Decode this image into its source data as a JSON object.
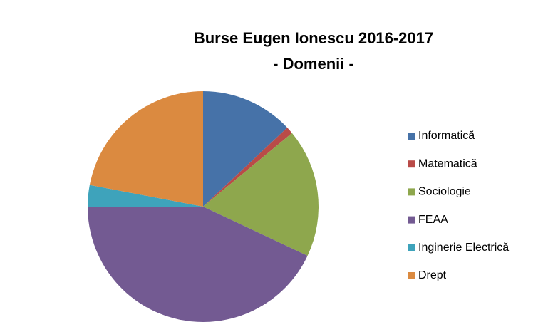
{
  "chart_data": {
    "type": "pie",
    "title": [
      "Burse Eugen Ionescu 2016-2017",
      "- Domenii -"
    ],
    "categories": [
      "Informatică",
      "Matematică",
      "Sociologie",
      "FEAA",
      "Inginerie Electrică",
      "Drept"
    ],
    "values": [
      13,
      1,
      18,
      43,
      3,
      22
    ],
    "colors": [
      "#4672a8",
      "#b94b48",
      "#8ea74d",
      "#735a92",
      "#3ea3bb",
      "#db8a40"
    ],
    "legend": "right"
  }
}
